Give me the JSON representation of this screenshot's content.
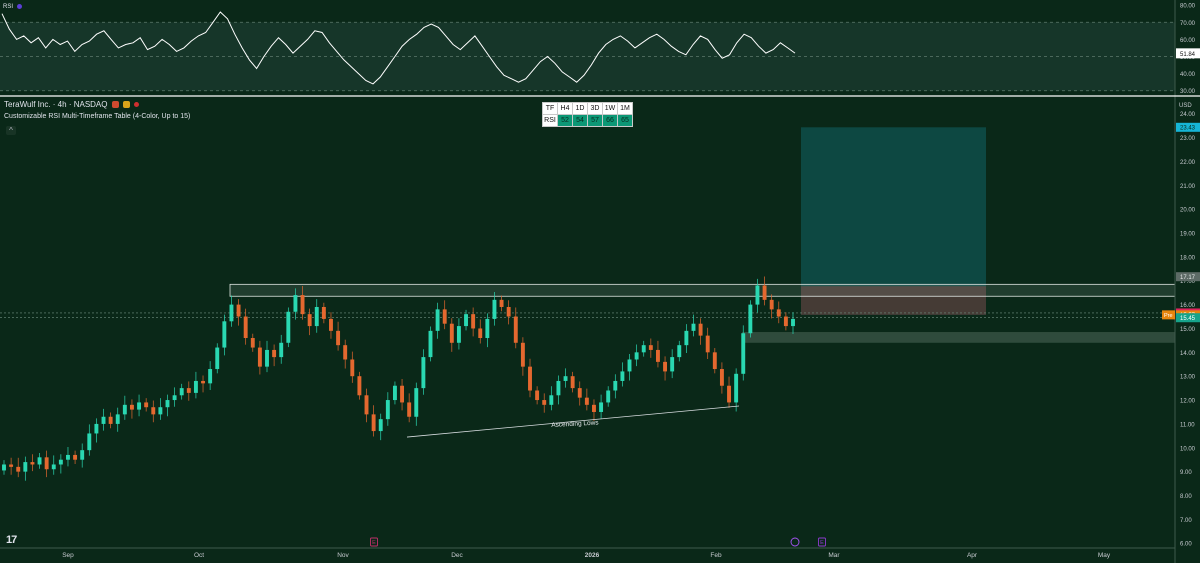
{
  "header": {
    "symbol_name": "TeraWulf Inc.",
    "timeframe": "4h",
    "exchange": "NASDAQ",
    "indicator_name": "Customizable RSI Multi-Timeframe Table (4-Color, Up to 15)",
    "rsi_pane_label": "RSI",
    "currency": "USD",
    "collapse_icon": "chevron-up-icon"
  },
  "tf_table": {
    "header": [
      "TF",
      "H4",
      "1D",
      "3D",
      "1W",
      "1M"
    ],
    "row_label": "RSI",
    "values": [
      "52",
      "54",
      "57",
      "66",
      "65"
    ]
  },
  "annotation": {
    "text": "Ascending Lows"
  },
  "logo": {
    "text": "17"
  },
  "colors": {
    "background": "#0a2818",
    "up": "#2ad8b2",
    "down": "#e4682f",
    "target_zone": "#0e4a44",
    "stop_zone": "#4b3a34",
    "rsi_line": "#ffffff",
    "table_cell": "#0c9775"
  },
  "chart_data": [
    {
      "type": "line",
      "title": "RSI",
      "y_ticks": [
        30,
        40,
        50,
        60,
        70,
        80
      ],
      "y_tick_labels": [
        "30.00",
        "40.00",
        "50.00",
        "60.00",
        "70.00",
        "80.00"
      ],
      "ylim": [
        27.5,
        83
      ],
      "reference_lines": [
        70,
        50,
        30
      ],
      "current_value_label": "51.84",
      "values": [
        75,
        66,
        60,
        62,
        58,
        61,
        55,
        60,
        57,
        59,
        53,
        57,
        59,
        63,
        65,
        60,
        55,
        57,
        58,
        61,
        54,
        56,
        60,
        57,
        53,
        55,
        59,
        62,
        64,
        70,
        76,
        72,
        63,
        55,
        48,
        43,
        50,
        56,
        61,
        57,
        52,
        56,
        60,
        65,
        64,
        58,
        53,
        48,
        44,
        40,
        36,
        34,
        38,
        44,
        50,
        56,
        60,
        63,
        67,
        69,
        67,
        62,
        57,
        54,
        58,
        62,
        56,
        50,
        44,
        39,
        37,
        35,
        37,
        42,
        47,
        50,
        46,
        41,
        38,
        35,
        39,
        45,
        52,
        57,
        60,
        62,
        59,
        55,
        58,
        61,
        63,
        60,
        56,
        53,
        51,
        57,
        62,
        60,
        54,
        49,
        51,
        58,
        63,
        61,
        56,
        52,
        54,
        58,
        55,
        52
      ],
      "current_value": 51.84
    },
    {
      "type": "candlestick",
      "symbol": "TeraWulf Inc.",
      "timeframe": "4h",
      "x_tick_labels": [
        "Sep",
        "Oct",
        "Nov",
        "Dec",
        "2026",
        "Feb",
        "Mar",
        "Apr",
        "May"
      ],
      "y_ticks": [
        6,
        7,
        8,
        9,
        10,
        11,
        12,
        13,
        14,
        15,
        16,
        17,
        18,
        19,
        20,
        21,
        22,
        23,
        24
      ],
      "y_tick_labels": [
        "6.00",
        "7.00",
        "8.00",
        "9.00",
        "10.00",
        "11.00",
        "12.00",
        "13.00",
        "14.00",
        "15.00",
        "16.00",
        "17.00",
        "18.00",
        "19.00",
        "20.00",
        "21.00",
        "22.00",
        "23.00",
        "24.00"
      ],
      "ylim": [
        5.8,
        24.7
      ],
      "closes": [
        9.3,
        9.2,
        9.0,
        9.4,
        9.3,
        9.6,
        9.1,
        9.3,
        9.5,
        9.7,
        9.5,
        9.9,
        10.6,
        11.0,
        11.3,
        11.0,
        11.4,
        11.8,
        11.6,
        11.9,
        11.7,
        11.4,
        11.7,
        12.0,
        12.2,
        12.5,
        12.3,
        12.8,
        12.7,
        13.3,
        14.2,
        15.3,
        16.0,
        15.5,
        14.6,
        14.2,
        13.4,
        14.1,
        13.8,
        14.4,
        15.7,
        16.4,
        15.6,
        15.1,
        15.9,
        15.4,
        14.9,
        14.3,
        13.7,
        13.0,
        12.2,
        11.4,
        10.7,
        11.2,
        12.0,
        12.6,
        11.9,
        11.3,
        12.5,
        13.8,
        14.9,
        15.8,
        15.2,
        14.4,
        15.1,
        15.6,
        15.0,
        14.6,
        15.4,
        16.2,
        15.9,
        15.5,
        14.4,
        13.4,
        12.4,
        12.0,
        11.8,
        12.2,
        12.8,
        13.0,
        12.5,
        12.1,
        11.8,
        11.5,
        11.9,
        12.4,
        12.8,
        13.2,
        13.7,
        14.0,
        14.3,
        14.1,
        13.6,
        13.2,
        13.8,
        14.3,
        14.9,
        15.2,
        14.7,
        14.0,
        13.3,
        12.6,
        11.9,
        13.1,
        14.8,
        16.0,
        16.8,
        16.2,
        15.8,
        15.5,
        15.1,
        15.4
      ],
      "high_of_range": 17.5,
      "low_point": 10.5,
      "resistance_zone": [
        16.35,
        16.85
      ],
      "support_zone": [
        14.4,
        14.85
      ],
      "position": {
        "entry": 15.57,
        "target": 23.43,
        "stop": 16.77
      },
      "price_labels": [
        "23.43",
        "17.17",
        "15.65",
        "15.57",
        "15.45"
      ],
      "pre_label": "Pre",
      "event_markers": [
        "E",
        "E"
      ]
    }
  ]
}
